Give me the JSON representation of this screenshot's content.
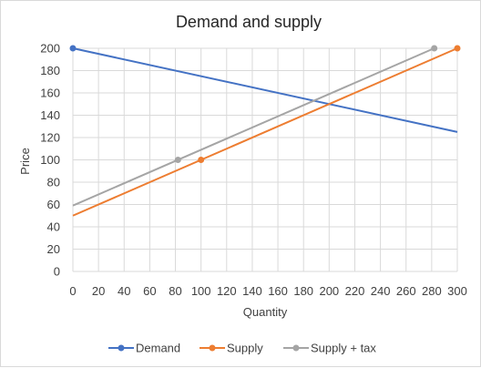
{
  "chart_data": {
    "type": "line",
    "title": "Demand and supply",
    "xlabel": "Quantity",
    "ylabel": "Price",
    "xlim": [
      0,
      300
    ],
    "ylim": [
      0,
      200
    ],
    "x_ticks": [
      "0",
      "20",
      "40",
      "60",
      "80",
      "100",
      "120",
      "140",
      "160",
      "180",
      "200",
      "220",
      "240",
      "260",
      "280",
      "300"
    ],
    "y_ticks": [
      "0",
      "20",
      "40",
      "60",
      "80",
      "100",
      "120",
      "140",
      "160",
      "180",
      "200"
    ],
    "grid": true,
    "legend_position": "bottom",
    "series": [
      {
        "name": "Demand",
        "color": "#4472c4",
        "markers": [
          [
            0,
            200
          ]
        ],
        "line": [
          [
            0,
            200
          ],
          [
            300,
            125
          ]
        ]
      },
      {
        "name": "Supply",
        "color": "#ed7d31",
        "markers": [
          [
            100,
            100
          ],
          [
            300,
            200
          ]
        ],
        "line": [
          [
            0,
            50
          ],
          [
            300,
            200
          ]
        ]
      },
      {
        "name": "Supply + tax",
        "color": "#a5a5a5",
        "markers": [
          [
            82,
            100
          ],
          [
            282,
            200
          ]
        ],
        "line": [
          [
            0,
            59
          ],
          [
            282,
            200
          ]
        ]
      }
    ]
  }
}
